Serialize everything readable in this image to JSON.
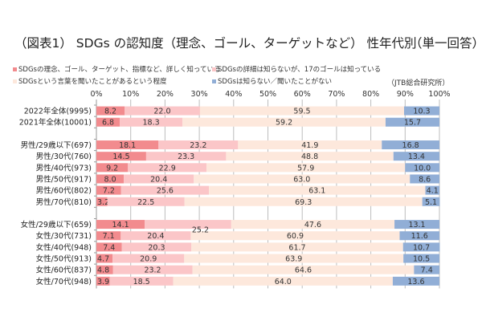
{
  "chart_data": {
    "type": "bar",
    "orientation": "horizontal",
    "stacked": true,
    "title": "（図表1） SDGs の認知度（理念、ゴール、ターゲットなど） 性年代別",
    "subtitle": "（単一回答）",
    "source": "（JTB総合研究所）",
    "xlabel": "",
    "ylabel": "",
    "xlim": [
      0,
      100
    ],
    "x_ticks": [
      "0%",
      "10%",
      "20%",
      "30%",
      "40%",
      "50%",
      "60%",
      "70%",
      "80%",
      "90%",
      "100%"
    ],
    "grid": true,
    "legend_position": "top",
    "categories": [
      "2022年全体(9995)",
      "2021年全体(10001)",
      "",
      "男性/29歳以下(697)",
      "男性/30代(760)",
      "男性/40代(973)",
      "男性/50代(917)",
      "男性/60代(802)",
      "男性/70代(810)",
      "",
      "女性/29歳以下(659)",
      "女性/30代(731)",
      "女性/40代(948)",
      "女性/50代(913)",
      "女性/60代(837)",
      "女性/70代(948)"
    ],
    "series": [
      {
        "name": "SDGsの理念、ゴール、ターゲット、指標など、詳しく知っている",
        "color": "#f28b8e",
        "values": [
          8.2,
          6.8,
          null,
          18.1,
          14.5,
          9.2,
          8.0,
          7.2,
          3.2,
          null,
          14.1,
          7.1,
          7.4,
          4.7,
          4.8,
          3.9
        ]
      },
      {
        "name": "SDGsの詳細は知らないが、17のゴールは知っている",
        "color": "#fbc6c8",
        "values": [
          22.0,
          18.3,
          null,
          23.2,
          23.3,
          22.9,
          20.4,
          25.6,
          22.5,
          null,
          25.2,
          20.4,
          20.3,
          20.9,
          23.2,
          18.5
        ]
      },
      {
        "name": "SDGsという言葉を聞いたことがあるという程度",
        "color": "#fde8dc",
        "values": [
          59.5,
          59.2,
          null,
          41.9,
          48.8,
          57.9,
          63.0,
          63.1,
          69.3,
          null,
          47.6,
          60.9,
          61.7,
          63.9,
          64.6,
          64.0
        ]
      },
      {
        "name": "SDGsは知らない／聞いたことがない",
        "color": "#91aed6",
        "values": [
          10.3,
          15.7,
          null,
          16.8,
          13.4,
          10.0,
          8.6,
          4.1,
          5.1,
          null,
          13.1,
          11.6,
          10.7,
          10.5,
          7.4,
          13.6
        ]
      }
    ],
    "annotations": [
      {
        "text": "25.2",
        "note": "label for 女性/29歳以下 second segment, printed offset above next row"
      }
    ]
  }
}
